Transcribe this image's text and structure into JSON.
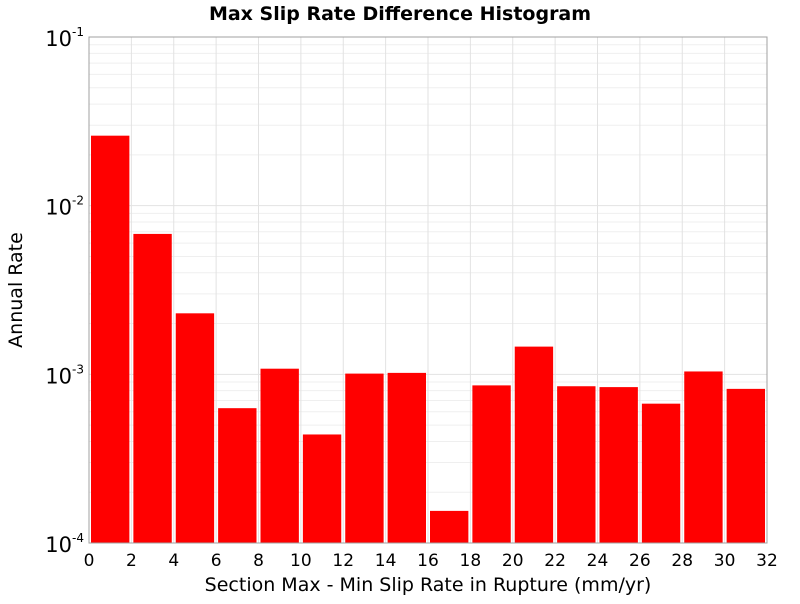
{
  "chart_data": {
    "type": "bar",
    "title": "Max Slip Rate Difference Histogram",
    "xlabel": "Section Max - Min Slip Rate in Rupture (mm/yr)",
    "ylabel": "Annual Rate",
    "yscale": "log",
    "xlim": [
      0,
      32
    ],
    "ylim": [
      0.0001,
      0.1
    ],
    "bin_width": 2,
    "x_ticks": [
      "0",
      "2",
      "4",
      "6",
      "8",
      "10",
      "12",
      "14",
      "16",
      "18",
      "20",
      "22",
      "24",
      "26",
      "28",
      "30",
      "32"
    ],
    "y_ticks": [
      {
        "base": "10",
        "exp": "-1",
        "value": 0.1
      },
      {
        "base": "10",
        "exp": "-2",
        "value": 0.01
      },
      {
        "base": "10",
        "exp": "-3",
        "value": 0.001
      },
      {
        "base": "10",
        "exp": "-4",
        "value": 0.0001
      }
    ],
    "bin_starts": [
      0,
      2,
      4,
      6,
      8,
      10,
      12,
      14,
      16,
      18,
      20,
      22,
      24,
      26,
      28,
      30
    ],
    "values": [
      0.026,
      0.0068,
      0.0023,
      0.00063,
      0.00108,
      0.00044,
      0.00101,
      0.00102,
      0.000155,
      0.00086,
      0.00146,
      0.00085,
      0.00084,
      0.00067,
      0.00104,
      0.00082
    ],
    "bar_color": "#ff0000",
    "grid": true,
    "legend": "none"
  }
}
